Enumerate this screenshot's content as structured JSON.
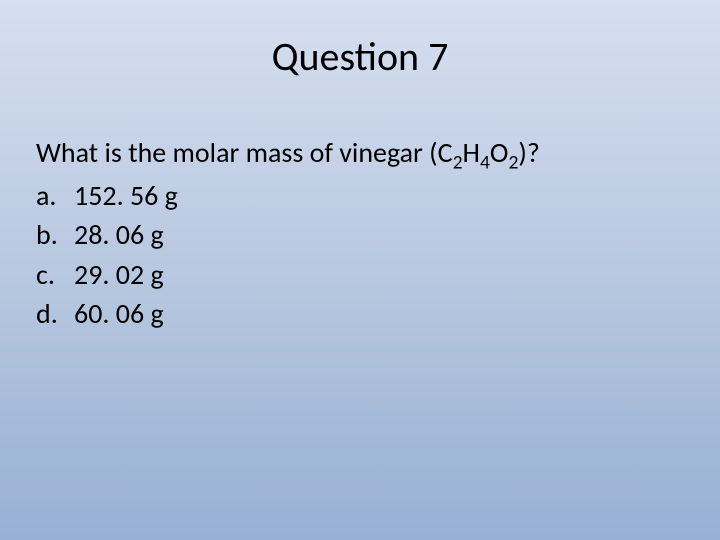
{
  "title": "Question 7",
  "question_prefix": "What is the molar mass of vinegar (C",
  "formula_sub1": "2",
  "formula_mid1": "H",
  "formula_sub2": "4",
  "formula_mid2": "O",
  "formula_sub3": "2",
  "question_suffix": ")?",
  "options": [
    {
      "letter": "a.",
      "text": "152. 56 g"
    },
    {
      "letter": "b.",
      "text": "28. 06 g"
    },
    {
      "letter": "c.",
      "text": "29. 02 g"
    },
    {
      "letter": "d.",
      "text": "60. 06 g"
    }
  ],
  "colors": {
    "background_top": "#d6dff0",
    "background_mid": "#b8c8e0",
    "background_bottom": "#97b0d4",
    "text": "#000000"
  },
  "typography": {
    "title_fontsize": 40,
    "body_fontsize": 28,
    "font_family": "Calibri"
  }
}
